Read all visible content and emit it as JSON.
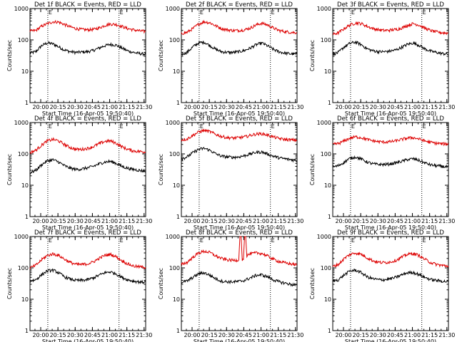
{
  "figure": {
    "colors": {
      "events": "#000000",
      "lld": "#dd0000"
    },
    "y_scale": "log",
    "ylim": [
      1,
      1000
    ],
    "y_ticks": [
      "1",
      "10",
      "100",
      "1000"
    ],
    "x_ticks": [
      "20:00",
      "20:15",
      "20:30",
      "20:45",
      "21:00",
      "21:15",
      "21:30"
    ],
    "xlabel": "Start Time (16-Apr-05 19:50:40)",
    "ylabel": "Counts/sec",
    "marker_labels": [
      "E",
      "E"
    ],
    "x_start_min": 0,
    "x_end_min": 100.7,
    "grid": false
  },
  "chart_data": [
    {
      "type": "line",
      "title": "Det 1f BLACK = Events, RED = LLD",
      "dashed_lines_min": [
        15.5,
        77.5
      ],
      "series": [
        {
          "name": "Events",
          "color": "#000000",
          "x": [
            0,
            5,
            10,
            15,
            20,
            25,
            30,
            35,
            40,
            45,
            50,
            55,
            60,
            65,
            70,
            75,
            80,
            85,
            90,
            95,
            100.7
          ],
          "y": [
            38,
            42,
            65,
            80,
            75,
            60,
            48,
            42,
            40,
            41,
            42,
            46,
            55,
            65,
            72,
            68,
            55,
            45,
            40,
            37,
            35
          ]
        },
        {
          "name": "LLD",
          "color": "#dd0000",
          "x": [
            0,
            5,
            10,
            15,
            20,
            25,
            30,
            35,
            40,
            45,
            50,
            55,
            60,
            65,
            70,
            75,
            80,
            85,
            90,
            95,
            100.7
          ],
          "y": [
            190,
            200,
            270,
            330,
            380,
            370,
            310,
            260,
            230,
            215,
            210,
            215,
            240,
            290,
            320,
            310,
            270,
            230,
            210,
            195,
            185
          ]
        }
      ]
    },
    {
      "type": "line",
      "title": "Det 2f BLACK = Events, RED = LLD",
      "dashed_lines_min": [
        15.5,
        77.5
      ],
      "series": [
        {
          "name": "Events",
          "color": "#000000",
          "x": [
            0,
            5,
            10,
            15,
            20,
            25,
            30,
            35,
            40,
            45,
            50,
            55,
            60,
            65,
            70,
            75,
            80,
            85,
            90,
            95,
            100.7
          ],
          "y": [
            35,
            40,
            60,
            80,
            85,
            65,
            50,
            42,
            40,
            40,
            42,
            46,
            55,
            70,
            80,
            65,
            50,
            42,
            38,
            36,
            35
          ]
        },
        {
          "name": "LLD",
          "color": "#dd0000",
          "x": [
            0,
            5,
            10,
            15,
            20,
            25,
            30,
            35,
            40,
            45,
            50,
            55,
            60,
            65,
            70,
            75,
            80,
            85,
            90,
            95,
            100.7
          ],
          "y": [
            160,
            175,
            230,
            320,
            380,
            350,
            280,
            230,
            210,
            200,
            200,
            210,
            240,
            300,
            340,
            300,
            240,
            200,
            185,
            175,
            170
          ]
        }
      ]
    },
    {
      "type": "line",
      "title": "Det 3f BLACK = Events, RED = LLD",
      "dashed_lines_min": [
        15.5,
        77.5
      ],
      "series": [
        {
          "name": "Events",
          "color": "#000000",
          "x": [
            0,
            5,
            10,
            15,
            20,
            25,
            30,
            35,
            40,
            45,
            50,
            55,
            60,
            65,
            70,
            75,
            80,
            85,
            90,
            95,
            100.7
          ],
          "y": [
            35,
            40,
            60,
            78,
            85,
            70,
            52,
            45,
            42,
            42,
            44,
            48,
            58,
            72,
            80,
            68,
            52,
            44,
            40,
            37,
            35
          ]
        },
        {
          "name": "LLD",
          "color": "#dd0000",
          "x": [
            0,
            5,
            10,
            15,
            20,
            25,
            30,
            35,
            40,
            45,
            50,
            55,
            60,
            65,
            70,
            75,
            80,
            85,
            90,
            95,
            100.7
          ],
          "y": [
            150,
            170,
            230,
            300,
            350,
            330,
            270,
            230,
            210,
            200,
            205,
            215,
            240,
            290,
            330,
            300,
            240,
            200,
            180,
            170,
            165
          ]
        }
      ]
    },
    {
      "type": "line",
      "title": "Det 4f BLACK = Events, RED = LLD",
      "dashed_lines_min": [
        15.5,
        77.5
      ],
      "series": [
        {
          "name": "Events",
          "color": "#000000",
          "x": [
            0,
            5,
            10,
            15,
            20,
            25,
            30,
            35,
            40,
            45,
            50,
            55,
            60,
            65,
            70,
            75,
            80,
            85,
            90,
            95,
            100.7
          ],
          "y": [
            25,
            30,
            45,
            60,
            65,
            55,
            42,
            35,
            32,
            33,
            36,
            40,
            48,
            55,
            58,
            50,
            40,
            35,
            32,
            30,
            28
          ]
        },
        {
          "name": "LLD",
          "color": "#dd0000",
          "x": [
            0,
            5,
            10,
            15,
            20,
            25,
            30,
            35,
            40,
            45,
            50,
            55,
            60,
            65,
            70,
            75,
            80,
            85,
            90,
            95,
            100.7
          ],
          "y": [
            110,
            130,
            190,
            260,
            290,
            260,
            200,
            160,
            140,
            140,
            150,
            170,
            210,
            250,
            260,
            220,
            170,
            140,
            125,
            120,
            115
          ]
        }
      ]
    },
    {
      "type": "line",
      "title": "Det 5f BLACK = Events, RED = LLD",
      "dashed_lines_min": [
        15.5,
        77.5
      ],
      "series": [
        {
          "name": "Events",
          "color": "#000000",
          "x": [
            0,
            5,
            10,
            15,
            20,
            25,
            30,
            35,
            40,
            45,
            50,
            55,
            60,
            65,
            70,
            75,
            80,
            85,
            90,
            95,
            100.7
          ],
          "y": [
            70,
            80,
            110,
            140,
            150,
            130,
            100,
            85,
            80,
            78,
            80,
            88,
            100,
            112,
            115,
            100,
            85,
            75,
            70,
            66,
            62
          ]
        },
        {
          "name": "LLD",
          "color": "#dd0000",
          "x": [
            0,
            5,
            10,
            15,
            20,
            25,
            30,
            35,
            40,
            45,
            50,
            55,
            60,
            65,
            70,
            75,
            80,
            85,
            90,
            95,
            100.7
          ],
          "y": [
            280,
            300,
            390,
            500,
            560,
            510,
            420,
            360,
            330,
            320,
            330,
            350,
            390,
            430,
            440,
            400,
            350,
            310,
            290,
            280,
            275
          ]
        }
      ]
    },
    {
      "type": "line",
      "title": "Det 6f BLACK = Events, RED = LLD",
      "dashed_lines_min": [
        15.5,
        77.5
      ],
      "series": [
        {
          "name": "Events",
          "color": "#000000",
          "x": [
            0,
            5,
            10,
            15,
            20,
            25,
            30,
            35,
            40,
            45,
            50,
            55,
            60,
            65,
            70,
            75,
            80,
            85,
            90,
            95,
            100.7
          ],
          "y": [
            38,
            42,
            55,
            72,
            80,
            68,
            55,
            48,
            46,
            46,
            48,
            52,
            58,
            66,
            70,
            62,
            52,
            45,
            42,
            40,
            38
          ]
        },
        {
          "name": "LLD",
          "color": "#dd0000",
          "x": [
            0,
            5,
            10,
            15,
            20,
            25,
            30,
            35,
            40,
            45,
            50,
            55,
            60,
            65,
            70,
            75,
            80,
            85,
            90,
            95,
            100.7
          ],
          "y": [
            200,
            215,
            260,
            320,
            350,
            330,
            290,
            260,
            245,
            240,
            245,
            260,
            290,
            320,
            330,
            300,
            260,
            235,
            220,
            210,
            205
          ]
        }
      ]
    },
    {
      "type": "line",
      "title": "Det 7f BLACK = Events, RED = LLD",
      "dashed_lines_min": [
        15.5,
        77.5
      ],
      "series": [
        {
          "name": "Events",
          "color": "#000000",
          "x": [
            0,
            5,
            10,
            15,
            20,
            25,
            30,
            35,
            40,
            45,
            50,
            55,
            60,
            65,
            70,
            75,
            80,
            85,
            90,
            95,
            100.7
          ],
          "y": [
            38,
            42,
            60,
            80,
            85,
            70,
            52,
            44,
            40,
            40,
            42,
            48,
            58,
            70,
            75,
            65,
            50,
            42,
            38,
            36,
            35
          ]
        },
        {
          "name": "LLD",
          "color": "#dd0000",
          "x": [
            0,
            5,
            10,
            15,
            20,
            25,
            30,
            35,
            40,
            45,
            50,
            55,
            60,
            65,
            70,
            75,
            80,
            85,
            90,
            95,
            100.7
          ],
          "y": [
            100,
            120,
            180,
            250,
            280,
            250,
            190,
            150,
            130,
            128,
            135,
            155,
            200,
            250,
            270,
            230,
            170,
            135,
            115,
            108,
            105
          ]
        }
      ]
    },
    {
      "type": "line",
      "title": "Det 8f BLACK = Events, RED = LLD",
      "dashed_lines_min": [
        15.5,
        77.5
      ],
      "series": [
        {
          "name": "Events",
          "color": "#000000",
          "x": [
            0,
            5,
            10,
            15,
            20,
            25,
            30,
            35,
            40,
            45,
            50,
            55,
            60,
            65,
            70,
            75,
            80,
            85,
            90,
            95,
            100.7
          ],
          "y": [
            35,
            38,
            50,
            65,
            70,
            58,
            45,
            38,
            36,
            36,
            37,
            40,
            48,
            58,
            60,
            52,
            42,
            36,
            33,
            30,
            28
          ]
        },
        {
          "name": "LLD",
          "color": "#dd0000",
          "x": [
            0,
            5,
            10,
            15,
            20,
            25,
            30,
            35,
            40,
            45,
            50,
            51,
            52,
            53,
            54,
            55,
            56,
            57,
            58,
            60,
            65,
            70,
            75,
            80,
            85,
            90,
            95,
            100.7
          ],
          "y": [
            130,
            150,
            220,
            300,
            340,
            310,
            240,
            200,
            180,
            175,
            180,
            1000,
            1000,
            180,
            185,
            1000,
            1000,
            250,
            260,
            280,
            300,
            290,
            240,
            190,
            160,
            145,
            135,
            125
          ]
        }
      ]
    },
    {
      "type": "line",
      "title": "Det 9f BLACK = Events, RED = LLD",
      "dashed_lines_min": [
        15.5,
        77.5
      ],
      "series": [
        {
          "name": "Events",
          "color": "#000000",
          "x": [
            0,
            5,
            10,
            15,
            20,
            25,
            30,
            35,
            40,
            45,
            50,
            55,
            60,
            65,
            70,
            75,
            80,
            85,
            90,
            95,
            100.7
          ],
          "y": [
            38,
            42,
            60,
            80,
            85,
            70,
            52,
            45,
            42,
            42,
            45,
            50,
            60,
            70,
            72,
            62,
            50,
            43,
            40,
            38,
            36
          ]
        },
        {
          "name": "LLD",
          "color": "#dd0000",
          "x": [
            0,
            5,
            10,
            15,
            20,
            25,
            30,
            35,
            40,
            45,
            50,
            55,
            60,
            65,
            70,
            75,
            80,
            85,
            90,
            95,
            100.7
          ],
          "y": [
            110,
            130,
            200,
            270,
            300,
            270,
            210,
            170,
            150,
            148,
            155,
            175,
            220,
            270,
            290,
            250,
            190,
            150,
            130,
            120,
            115
          ]
        }
      ]
    }
  ]
}
